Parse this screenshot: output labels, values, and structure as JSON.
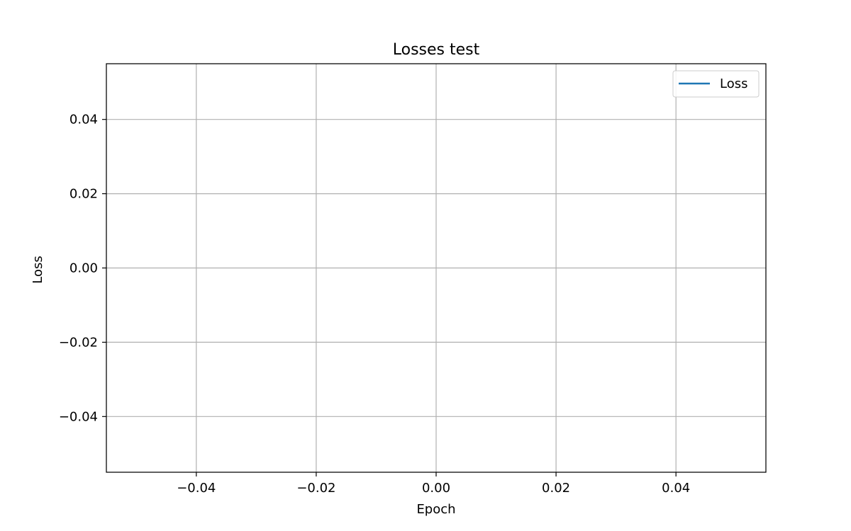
{
  "chart_data": {
    "type": "line",
    "title": "Losses test",
    "xlabel": "Epoch",
    "ylabel": "Loss",
    "xlim": [
      -0.055,
      0.055
    ],
    "ylim": [
      -0.055,
      0.055
    ],
    "xticks": [
      -0.04,
      -0.02,
      0.0,
      0.02,
      0.04
    ],
    "yticks": [
      -0.04,
      -0.02,
      0.0,
      0.02,
      0.04
    ],
    "xtick_labels": [
      "−0.04",
      "−0.02",
      "0.00",
      "0.02",
      "0.04"
    ],
    "ytick_labels": [
      "−0.04",
      "−0.02",
      "0.00",
      "0.02",
      "0.04"
    ],
    "grid": true,
    "legend_position": "top-right",
    "series": [
      {
        "name": "Loss",
        "color": "#1f77b4",
        "x": [],
        "y": []
      }
    ]
  }
}
